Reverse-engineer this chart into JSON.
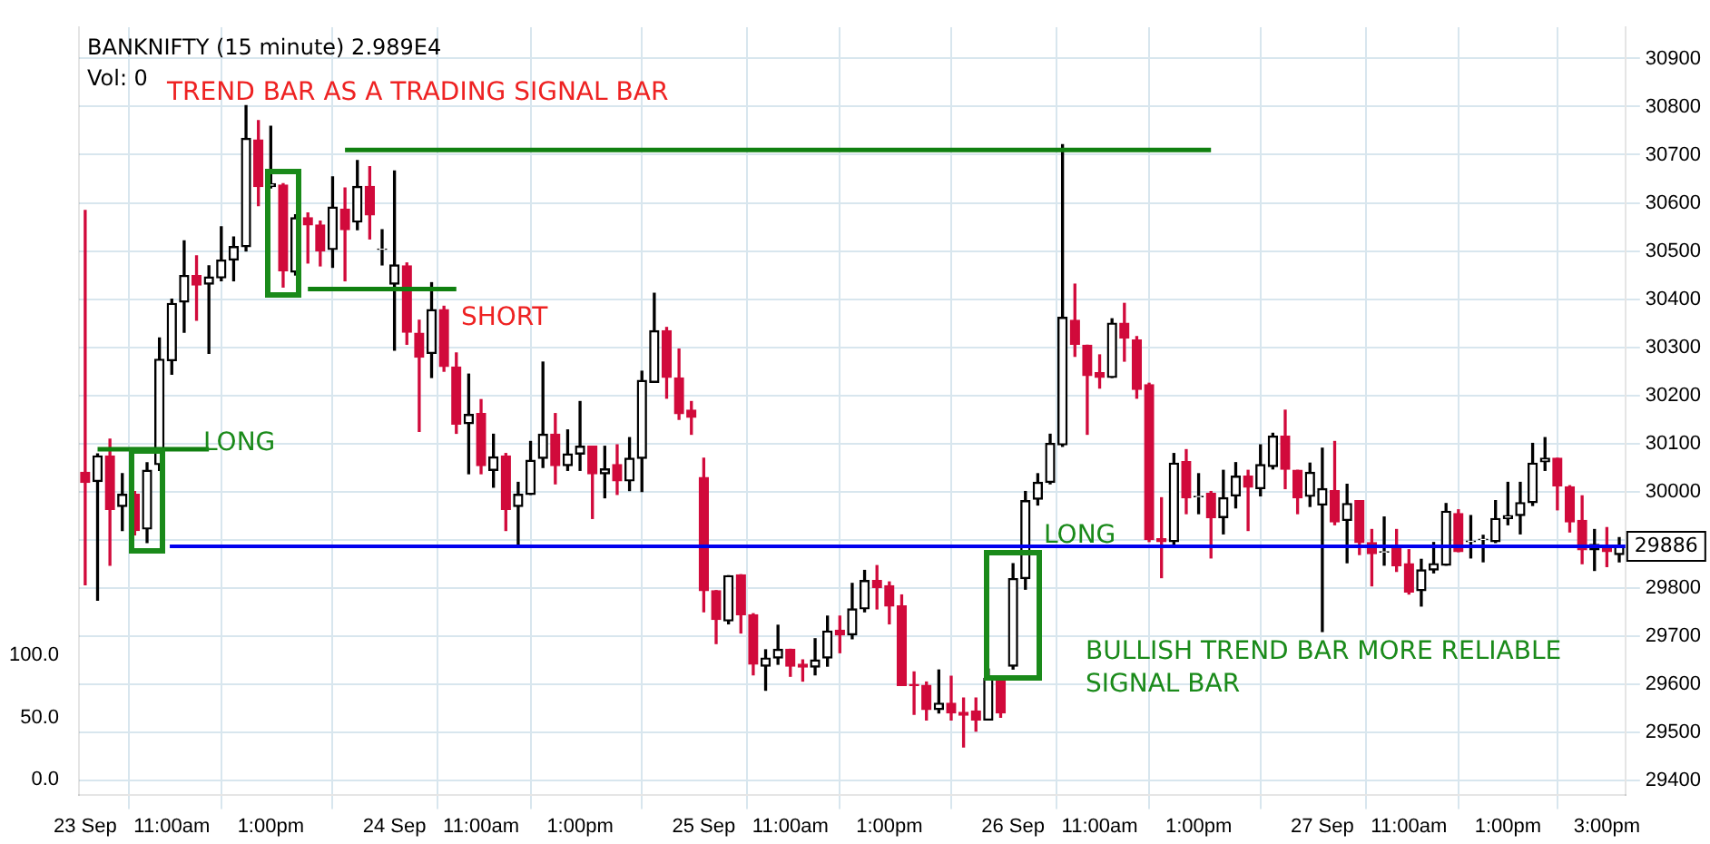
{
  "chart_data": {
    "type": "candlestick",
    "title": "BANKNIFTY (15 minute) 2.989E4",
    "annotations": [
      "Vol: 0",
      "TREND BAR AS A TRADING SIGNAL BAR",
      "LONG",
      "SHORT",
      "LONG",
      "BULLISH TREND BAR MORE RELIABLE SIGNAL BAR"
    ],
    "categories": [
      "23 Sep",
      null,
      null,
      null,
      null,
      null,
      null,
      "11:00am",
      null,
      null,
      null,
      null,
      null,
      null,
      null,
      "1:00pm",
      null,
      null,
      null,
      null,
      null,
      null,
      null,
      null,
      null,
      "24 Sep",
      null,
      null,
      null,
      null,
      null,
      null,
      "11:00am",
      null,
      null,
      null,
      null,
      null,
      null,
      null,
      "1:00pm",
      null,
      null,
      null,
      null,
      null,
      null,
      null,
      null,
      null,
      "25 Sep",
      null,
      null,
      null,
      null,
      null,
      null,
      "11:00am",
      null,
      null,
      null,
      null,
      null,
      null,
      null,
      "1:00pm",
      null,
      null,
      null,
      null,
      null,
      null,
      null,
      null,
      null,
      "26 Sep",
      null,
      null,
      null,
      null,
      null,
      null,
      "11:00am",
      null,
      null,
      null,
      null,
      null,
      null,
      null,
      "1:00pm",
      null,
      null,
      null,
      null,
      null,
      null,
      null,
      null,
      null,
      "27 Sep",
      null,
      null,
      null,
      null,
      null,
      null,
      "11:00am",
      null,
      null,
      null,
      null,
      null,
      null,
      null,
      "1:00pm",
      null,
      null,
      null,
      null,
      null,
      null,
      null,
      "3:00pm",
      null
    ],
    "colors": [
      "#d10a3b",
      "#000000",
      "#d10a3b",
      "#000000",
      "#d10a3b",
      "#000000",
      "#000000",
      "#000000",
      "#000000",
      "#d10a3b",
      "#000000",
      "#000000",
      "#000000",
      "#000000",
      "#d10a3b",
      "#000000",
      "#d10a3b",
      "#000000",
      "#d10a3b",
      "#d10a3b",
      "#000000",
      "#d10a3b",
      "#000000",
      "#d10a3b",
      "#000000",
      "#000000",
      "#d10a3b",
      "#d10a3b",
      "#000000",
      "#d10a3b",
      "#d10a3b",
      "#000000",
      "#d10a3b",
      "#000000",
      "#d10a3b",
      "#000000",
      "#000000",
      "#000000",
      "#d10a3b",
      "#000000",
      "#000000",
      "#d10a3b",
      "#000000",
      "#d10a3b",
      "#000000",
      "#000000",
      "#000000",
      "#d10a3b",
      "#d10a3b",
      "#d10a3b",
      "#d10a3b",
      "#d10a3b",
      "#000000",
      "#d10a3b",
      "#d10a3b",
      "#000000",
      "#000000",
      "#d10a3b",
      "#d10a3b",
      "#000000",
      "#000000",
      "#d10a3b",
      "#000000",
      "#000000",
      "#d10a3b",
      "#d10a3b",
      "#d10a3b",
      "#d10a3b",
      "#d10a3b",
      "#000000",
      "#d10a3b",
      "#d10a3b",
      "#d10a3b",
      "#000000",
      "#d10a3b",
      "#000000",
      "#000000",
      "#000000",
      "#000000",
      "#000000",
      "#d10a3b",
      "#d10a3b",
      "#d10a3b",
      "#000000",
      "#d10a3b",
      "#d10a3b",
      "#d10a3b",
      "#d10a3b",
      "#000000",
      "#d10a3b",
      "#000000",
      "#d10a3b",
      "#000000",
      "#000000",
      "#d10a3b",
      "#000000",
      "#000000",
      "#d10a3b",
      "#d10a3b",
      "#000000",
      "#000000",
      "#d10a3b",
      "#000000",
      "#d10a3b",
      "#d10a3b",
      "#000000",
      "#d10a3b",
      "#d10a3b",
      "#000000",
      "#000000",
      "#000000",
      "#d10a3b",
      "#000000",
      "#000000",
      "#000000",
      "#000000",
      "#000000",
      "#000000",
      "#000000",
      "#d10a3b",
      "#d10a3b",
      "#d10a3b",
      "#000000",
      "#d10a3b",
      "#000000"
    ],
    "ohlc": [
      [
        30040,
        30584,
        29806,
        30019
      ],
      [
        30021,
        30078,
        29774,
        30074
      ],
      [
        30074,
        30109,
        29847,
        29963
      ],
      [
        29969,
        30037,
        29919,
        29994
      ],
      [
        29994,
        30000,
        29910,
        29919
      ],
      [
        29922,
        30060,
        29894,
        30044
      ],
      [
        30056,
        30319,
        30044,
        30275
      ],
      [
        30272,
        30400,
        30244,
        30391
      ],
      [
        30394,
        30521,
        30331,
        30449
      ],
      [
        30449,
        30490,
        30356,
        30429
      ],
      [
        30431,
        30469,
        30287,
        30446
      ],
      [
        30444,
        30550,
        30438,
        30481
      ],
      [
        30481,
        30529,
        30438,
        30509
      ],
      [
        30509,
        30802,
        30500,
        30734
      ],
      [
        30731,
        30771,
        30594,
        30634
      ],
      [
        30634,
        30759,
        30631,
        30640
      ],
      [
        30637,
        30640,
        30425,
        30459
      ],
      [
        30456,
        30575,
        30450,
        30569
      ],
      [
        30569,
        30579,
        30475,
        30554
      ],
      [
        30554,
        30562,
        30469,
        30500
      ],
      [
        30503,
        30654,
        30466,
        30591
      ],
      [
        30587,
        30631,
        30438,
        30544
      ],
      [
        30560,
        30688,
        30544,
        30634
      ],
      [
        30634,
        30675,
        30525,
        30575
      ],
      [
        30503,
        30544,
        30471,
        30504
      ],
      [
        30431,
        30666,
        30294,
        30471
      ],
      [
        30469,
        30475,
        30306,
        30331
      ],
      [
        30329,
        30356,
        30125,
        30279
      ],
      [
        30287,
        30434,
        30237,
        30378
      ],
      [
        30378,
        30385,
        30250,
        30260
      ],
      [
        30259,
        30288,
        30121,
        30140
      ],
      [
        30141,
        30244,
        30037,
        30160
      ],
      [
        30162,
        30191,
        30037,
        30054
      ],
      [
        30044,
        30119,
        30009,
        30072
      ],
      [
        30074,
        30079,
        29919,
        29963
      ],
      [
        29969,
        30019,
        29887,
        29994
      ],
      [
        29994,
        30104,
        29994,
        30065
      ],
      [
        30069,
        30269,
        30050,
        30119
      ],
      [
        30119,
        30162,
        30016,
        30054
      ],
      [
        30054,
        30128,
        30044,
        30078
      ],
      [
        30078,
        30187,
        30044,
        30094
      ],
      [
        30094,
        30094,
        29944,
        30037
      ],
      [
        30037,
        30094,
        29987,
        30047
      ],
      [
        30056,
        30097,
        29994,
        30022
      ],
      [
        30022,
        30112,
        30002,
        30069
      ],
      [
        30069,
        30250,
        30000,
        30231
      ],
      [
        30227,
        30412,
        30227,
        30334
      ],
      [
        30334,
        30341,
        30194,
        30237
      ],
      [
        30236,
        30296,
        30150,
        30162
      ],
      [
        30169,
        30187,
        30119,
        30154
      ],
      [
        30029,
        30069,
        29750,
        29794
      ],
      [
        29794,
        29794,
        29684,
        29734
      ],
      [
        29731,
        29825,
        29725,
        29825
      ],
      [
        29827,
        29827,
        29706,
        29744
      ],
      [
        29744,
        29746,
        29619,
        29641
      ],
      [
        29637,
        29671,
        29587,
        29654
      ],
      [
        29654,
        29722,
        29641,
        29672
      ],
      [
        29672,
        29672,
        29616,
        29637
      ],
      [
        29641,
        29650,
        29606,
        29635
      ],
      [
        29635,
        29694,
        29619,
        29650
      ],
      [
        29654,
        29741,
        29637,
        29710
      ],
      [
        29712,
        29741,
        29665,
        29702
      ],
      [
        29702,
        29809,
        29694,
        29756
      ],
      [
        29756,
        29836,
        29750,
        29815
      ],
      [
        29815,
        29846,
        29756,
        29800
      ],
      [
        29804,
        29812,
        29725,
        29762
      ],
      [
        29762,
        29785,
        29597,
        29597
      ],
      [
        29599,
        29625,
        29537,
        29597
      ],
      [
        29597,
        29604,
        29525,
        29547
      ],
      [
        29547,
        29629,
        29540,
        29560
      ],
      [
        29560,
        29616,
        29525,
        29540
      ],
      [
        29541,
        29571,
        29469,
        29535
      ],
      [
        29544,
        29571,
        29502,
        29525
      ],
      [
        29525,
        29631,
        29525,
        29612
      ],
      [
        29612,
        29615,
        29531,
        29540
      ],
      [
        29637,
        29850,
        29631,
        29819
      ],
      [
        29819,
        30000,
        29797,
        29981
      ],
      [
        29984,
        30037,
        29972,
        30019
      ],
      [
        30019,
        30119,
        30016,
        30100
      ],
      [
        30097,
        30721,
        30094,
        30362
      ],
      [
        30356,
        30431,
        30281,
        30306
      ],
      [
        30304,
        30304,
        30119,
        30241
      ],
      [
        30247,
        30284,
        30215,
        30237
      ],
      [
        30237,
        30359,
        30237,
        30350
      ],
      [
        30350,
        30391,
        30271,
        30319
      ],
      [
        30315,
        30322,
        30194,
        30212
      ],
      [
        30222,
        30225,
        29896,
        29900
      ],
      [
        29902,
        29987,
        29821,
        29896
      ],
      [
        29896,
        30079,
        29891,
        30059
      ],
      [
        30062,
        30087,
        29954,
        29987
      ],
      [
        29989,
        30037,
        29954,
        29990
      ],
      [
        29996,
        30000,
        29862,
        29946
      ],
      [
        29946,
        30044,
        29912,
        29987
      ],
      [
        29991,
        30060,
        29966,
        30032
      ],
      [
        30032,
        30044,
        29919,
        30009
      ],
      [
        30006,
        30097,
        29991,
        30056
      ],
      [
        30052,
        30121,
        30047,
        30115
      ],
      [
        30115,
        30169,
        30006,
        30046
      ],
      [
        30044,
        30044,
        29954,
        29987
      ],
      [
        29990,
        30059,
        29969,
        30040
      ],
      [
        29972,
        30090,
        29709,
        30006
      ],
      [
        30002,
        30104,
        29931,
        29937
      ],
      [
        29940,
        30015,
        29852,
        29975
      ],
      [
        29981,
        29981,
        29869,
        29894
      ],
      [
        29894,
        29921,
        29804,
        29871
      ],
      [
        29874,
        29947,
        29847,
        29875
      ],
      [
        29881,
        29921,
        29834,
        29846
      ],
      [
        29850,
        29879,
        29787,
        29791
      ],
      [
        29794,
        29859,
        29762,
        29837
      ],
      [
        29837,
        29894,
        29831,
        29850
      ],
      [
        29847,
        29975,
        29847,
        29959
      ],
      [
        29954,
        29962,
        29875,
        29875
      ],
      [
        29896,
        29950,
        29862,
        29897
      ],
      [
        29900,
        29909,
        29854,
        29901
      ],
      [
        29896,
        29981,
        29894,
        29944
      ],
      [
        29944,
        30019,
        29931,
        29950
      ],
      [
        29950,
        30019,
        29912,
        29977
      ],
      [
        29977,
        30100,
        29971,
        30059
      ],
      [
        30062,
        30112,
        30044,
        30069
      ],
      [
        30069,
        30069,
        29962,
        30012
      ],
      [
        30010,
        30012,
        29916,
        29937
      ],
      [
        29940,
        29991,
        29850,
        29879
      ],
      [
        29879,
        29921,
        29836,
        29890
      ],
      [
        29887,
        29925,
        29844,
        29875
      ],
      [
        29869,
        29904,
        29854,
        29887
      ]
    ],
    "series": [
      {
        "type": "line",
        "color": "#108010",
        "values": [
          null,
          null,
          null,
          null,
          null,
          null,
          null,
          null,
          null,
          null,
          null,
          null,
          null,
          null,
          null,
          null,
          null,
          null,
          null,
          null,
          null,
          30710,
          null,
          null,
          null,
          null,
          null,
          null,
          null,
          null,
          null,
          null,
          null,
          null,
          null,
          null,
          null,
          null,
          null,
          null,
          null,
          null,
          null,
          null,
          null,
          null,
          null,
          null,
          null,
          null,
          null,
          null,
          null,
          null,
          null,
          null,
          null,
          null,
          null,
          null,
          null,
          null,
          null,
          null,
          null,
          null,
          null,
          null,
          null,
          null,
          null,
          null,
          null,
          null,
          null,
          null,
          null,
          null,
          null,
          null,
          null,
          null,
          null,
          null,
          null,
          null,
          null,
          null,
          null,
          null,
          null,
          30710,
          null,
          null,
          null,
          null,
          null,
          null,
          null,
          null,
          null,
          null,
          null,
          null,
          null,
          null,
          null,
          null,
          null,
          null,
          null,
          null,
          null,
          null,
          null,
          null,
          null,
          null,
          null,
          null,
          null,
          null,
          null,
          null,
          null
        ]
      },
      {
        "type": "line",
        "color": "#108010",
        "values": [
          null,
          30088,
          null,
          null,
          null,
          null,
          null,
          null,
          null,
          null,
          30088,
          null,
          null,
          null,
          null,
          null,
          null,
          null,
          null,
          null,
          null,
          null,
          null,
          null,
          null,
          null,
          null,
          null,
          null,
          null,
          null,
          null,
          null,
          null,
          null,
          null,
          null,
          null,
          null,
          null,
          null,
          null,
          null,
          null,
          null,
          null,
          null,
          null,
          null,
          null,
          null,
          null,
          null,
          null,
          null,
          null,
          null,
          null,
          null,
          null,
          null,
          null,
          null,
          null,
          null,
          null,
          null,
          null,
          null,
          null,
          null,
          null,
          null,
          null,
          null,
          null,
          null,
          null,
          null,
          null,
          null,
          null,
          null,
          null,
          null,
          null,
          null,
          null,
          null,
          null,
          null,
          null,
          null,
          null,
          null,
          null,
          null,
          null,
          null,
          null,
          null,
          null,
          null,
          null,
          null,
          null,
          null,
          null,
          null,
          null,
          null,
          null,
          null,
          null,
          null,
          null,
          null,
          null,
          null,
          null,
          null,
          null,
          null,
          null,
          null
        ]
      },
      {
        "type": "line",
        "color": "#108010",
        "values": [
          null,
          null,
          null,
          null,
          null,
          null,
          null,
          null,
          null,
          null,
          null,
          null,
          null,
          null,
          null,
          null,
          null,
          null,
          30421,
          null,
          null,
          null,
          null,
          null,
          null,
          null,
          null,
          null,
          null,
          null,
          30421,
          null,
          null,
          null,
          null,
          null,
          null,
          null,
          null,
          null,
          null,
          null,
          null,
          null,
          null,
          null,
          null,
          null,
          null,
          null,
          null,
          null,
          null,
          null,
          null,
          null,
          null,
          null,
          null,
          null,
          null,
          null,
          null,
          null,
          null,
          null,
          null,
          null,
          null,
          null,
          null,
          null,
          null,
          null,
          null,
          null,
          null,
          null,
          null,
          null,
          null,
          null,
          null,
          null,
          null,
          null,
          null,
          null,
          null,
          null,
          null,
          null,
          null,
          null,
          null,
          null,
          null,
          null,
          null,
          null,
          null,
          null,
          null,
          null,
          null,
          null,
          null,
          null,
          null,
          null,
          null,
          null,
          null,
          null,
          null,
          null,
          null,
          null,
          null,
          null,
          null,
          null,
          null,
          null,
          null
        ]
      }
    ],
    "ref_lines": [
      {
        "axis": "y",
        "value": 29886,
        "label": "29886",
        "color": "#0000ee"
      }
    ],
    "ylim": [
      29370,
      30965
    ],
    "yticks": [
      29400,
      29500,
      29600,
      29700,
      29800,
      {
        "value": 29900,
        "label": null
      },
      30000,
      30100,
      30200,
      30300,
      30400,
      30500,
      30600,
      30700,
      30800,
      30900
    ],
    "y2lim": [
      -12,
      606
    ],
    "y2ticks": [
      {
        "value": 0,
        "label": "0.0"
      },
      {
        "value": 50,
        "label": "50.0"
      },
      {
        "value": 100,
        "label": "100.0"
      }
    ],
    "grid": true
  }
}
